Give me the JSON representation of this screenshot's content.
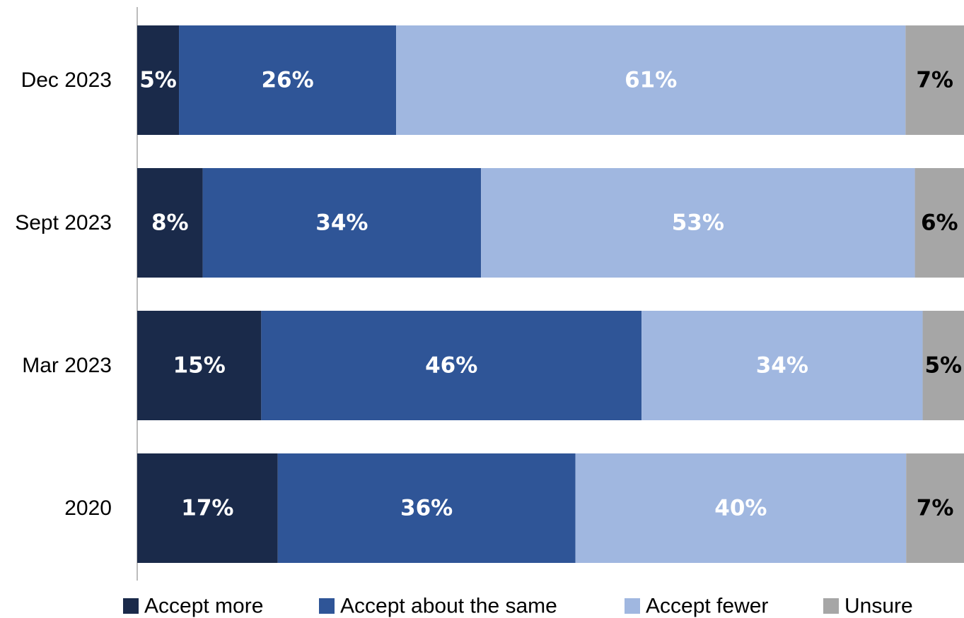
{
  "chart_data": {
    "type": "bar",
    "orientation": "horizontal",
    "stacked": true,
    "title": "",
    "xlabel": "",
    "ylabel": "",
    "xlim": [
      0,
      100
    ],
    "grid": false,
    "legend_position": "bottom",
    "categories": [
      "Dec 2023",
      "Sept 2023",
      "Mar 2023",
      "2020"
    ],
    "series": [
      {
        "name": "Accept more",
        "color": "#1a2a4a",
        "label_color": "#ffffff",
        "values": [
          5,
          8,
          15,
          17
        ],
        "labels": [
          "5%",
          "8%",
          "15%",
          "17%"
        ]
      },
      {
        "name": "Accept about the same",
        "color": "#2f5597",
        "label_color": "#ffffff",
        "values": [
          26,
          34,
          46,
          36
        ],
        "labels": [
          "26%",
          "34%",
          "46%",
          "36%"
        ]
      },
      {
        "name": "Accept fewer",
        "color": "#a0b7e0",
        "label_color": "#ffffff",
        "values": [
          61,
          53,
          34,
          40
        ],
        "labels": [
          "61%",
          "53%",
          "34%",
          "40%"
        ]
      },
      {
        "name": "Unsure",
        "color": "#a6a6a6",
        "label_color": "#000000",
        "values": [
          7,
          6,
          5,
          7
        ],
        "labels": [
          "7%",
          "6%",
          "5%",
          "7%"
        ]
      }
    ]
  }
}
